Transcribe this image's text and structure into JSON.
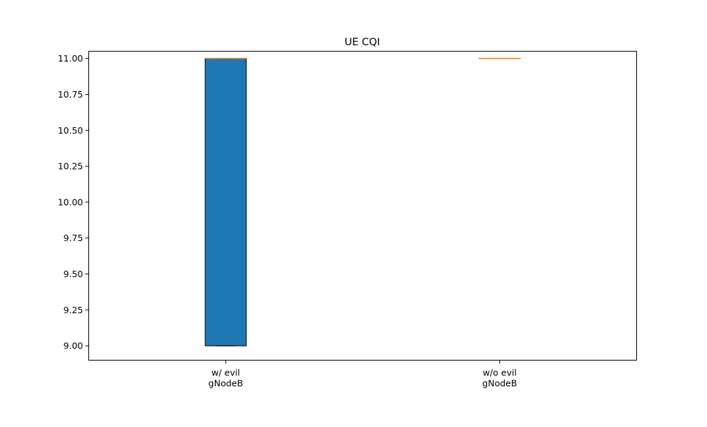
{
  "chart_data": {
    "type": "box",
    "title": "UE CQI",
    "xlabel": "",
    "ylabel": "",
    "categories": [
      "w/ evil\ngNodeB",
      "w/o evil\ngNodeB"
    ],
    "boxes": [
      {
        "category": "w/ evil\ngNodeB",
        "whisker_low": 9.0,
        "q1": 9.0,
        "median": 11.0,
        "q3": 11.0,
        "whisker_high": 11.0,
        "fill": "#1f77b4"
      },
      {
        "category": "w/o evil\ngNodeB",
        "whisker_low": 11.0,
        "q1": 11.0,
        "median": 11.0,
        "q3": 11.0,
        "whisker_high": 11.0,
        "fill": "#1f77b4"
      }
    ],
    "ylim": [
      8.9,
      11.05
    ],
    "yticks": [
      9.0,
      9.25,
      9.5,
      9.75,
      10.0,
      10.25,
      10.5,
      10.75,
      11.0
    ],
    "ytick_labels": [
      "9.00",
      "9.25",
      "9.50",
      "9.75",
      "10.00",
      "10.25",
      "10.50",
      "10.75",
      "11.00"
    ],
    "grid": false,
    "legend": "none",
    "colors": {
      "box_fill": "#1f77b4",
      "median": "#ff7f0e",
      "edge": "#000000"
    }
  }
}
